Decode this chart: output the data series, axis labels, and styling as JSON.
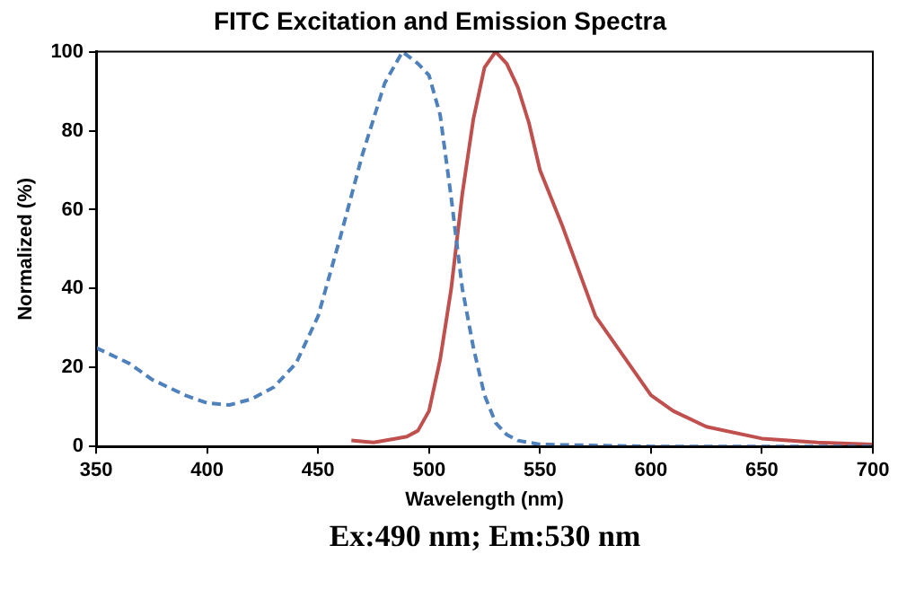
{
  "chart_data": {
    "type": "line",
    "title": "FITC Excitation and Emission Spectra",
    "xlabel": "Wavelength (nm)",
    "ylabel": "Normalized (%)",
    "xlim": [
      350,
      700
    ],
    "xticks": [
      350,
      400,
      450,
      500,
      550,
      600,
      650,
      700
    ],
    "ylim": [
      0,
      100
    ],
    "yticks": [
      0,
      20,
      40,
      60,
      80,
      100
    ],
    "grid": false,
    "legend": false,
    "marker": "none",
    "series": [
      {
        "color": "#4f81bd",
        "line_style": "dashed",
        "x": [
          350,
          365,
          375,
          390,
          400,
          410,
          420,
          430,
          440,
          450,
          460,
          470,
          480,
          488,
          495,
          500,
          505,
          510,
          515,
          520,
          525,
          530,
          535,
          540,
          550,
          600,
          700
        ],
        "values": [
          25,
          21,
          17,
          13,
          11,
          10.5,
          12,
          15,
          21,
          33,
          53,
          74,
          92,
          100,
          97,
          94,
          84,
          63,
          40,
          25,
          13,
          6,
          3,
          1.5,
          0.5,
          0,
          0
        ]
      },
      {
        "color": "#c0504d",
        "line_style": "solid",
        "x": [
          465,
          475,
          485,
          490,
          495,
          500,
          505,
          510,
          515,
          520,
          525,
          530,
          535,
          540,
          545,
          550,
          560,
          575,
          590,
          600,
          610,
          625,
          650,
          675,
          700
        ],
        "values": [
          1.5,
          1,
          2,
          2.5,
          4,
          9,
          22,
          40,
          64,
          83,
          96,
          100,
          97,
          91,
          82,
          70,
          56,
          33,
          21,
          13,
          9,
          5,
          2,
          1,
          0.5
        ]
      }
    ],
    "annotations": [
      "Ex:490 nm; Em:530 nm"
    ]
  }
}
